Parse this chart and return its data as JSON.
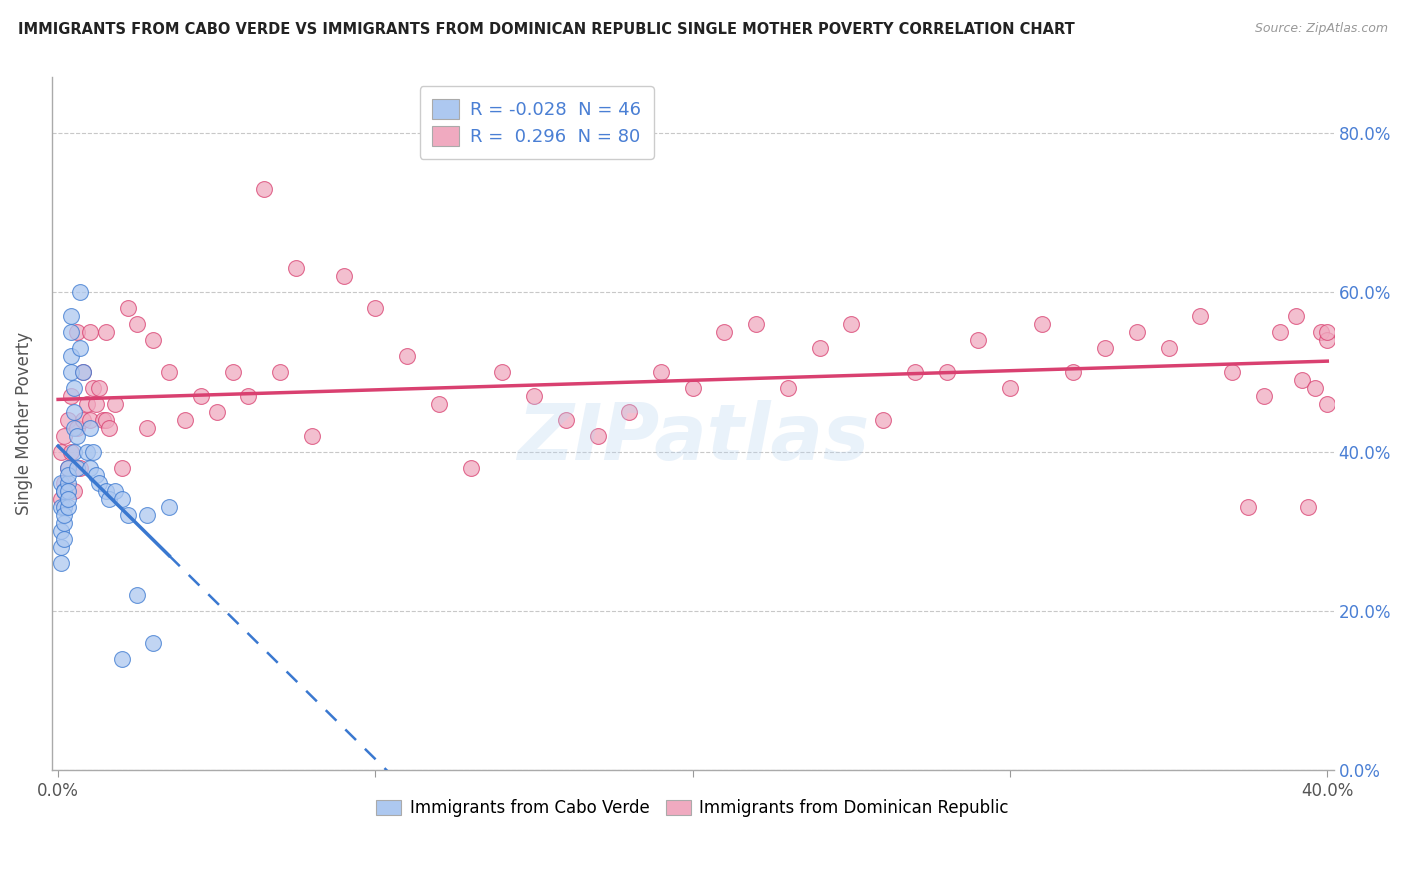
{
  "title": "IMMIGRANTS FROM CABO VERDE VS IMMIGRANTS FROM DOMINICAN REPUBLIC SINGLE MOTHER POVERTY CORRELATION CHART",
  "source": "Source: ZipAtlas.com",
  "ylabel": "Single Mother Poverty",
  "xlabel": "",
  "xlim": [
    -0.002,
    0.402
  ],
  "ylim": [
    0.0,
    0.87
  ],
  "yticks": [
    0.0,
    0.2,
    0.4,
    0.6,
    0.8
  ],
  "xticks": [
    0.0,
    0.1,
    0.2,
    0.3,
    0.4
  ],
  "xtick_labels": [
    "0.0%",
    "",
    "",
    "",
    "40.0%"
  ],
  "legend_R1": "-0.028",
  "legend_N1": "46",
  "legend_R2": "0.296",
  "legend_N2": "80",
  "color_blue": "#adc8f0",
  "color_pink": "#f0aac0",
  "color_blue_line": "#3a78d0",
  "color_pink_line": "#d94070",
  "color_text_blue": "#4a7fd4",
  "watermark": "ZIPatlas",
  "background_color": "#ffffff",
  "grid_color": "#c8c8c8",
  "cabo_verde_x": [
    0.001,
    0.001,
    0.001,
    0.001,
    0.001,
    0.002,
    0.002,
    0.002,
    0.002,
    0.002,
    0.002,
    0.003,
    0.003,
    0.003,
    0.003,
    0.003,
    0.003,
    0.004,
    0.004,
    0.004,
    0.004,
    0.005,
    0.005,
    0.005,
    0.005,
    0.006,
    0.006,
    0.007,
    0.007,
    0.008,
    0.009,
    0.01,
    0.01,
    0.011,
    0.012,
    0.013,
    0.015,
    0.016,
    0.018,
    0.02,
    0.02,
    0.022,
    0.025,
    0.028,
    0.03,
    0.035
  ],
  "cabo_verde_y": [
    0.33,
    0.36,
    0.3,
    0.28,
    0.26,
    0.35,
    0.33,
    0.35,
    0.31,
    0.29,
    0.32,
    0.36,
    0.38,
    0.35,
    0.33,
    0.37,
    0.34,
    0.55,
    0.57,
    0.52,
    0.5,
    0.48,
    0.45,
    0.43,
    0.4,
    0.42,
    0.38,
    0.53,
    0.6,
    0.5,
    0.4,
    0.43,
    0.38,
    0.4,
    0.37,
    0.36,
    0.35,
    0.34,
    0.35,
    0.34,
    0.14,
    0.32,
    0.22,
    0.32,
    0.16,
    0.33
  ],
  "dominican_x": [
    0.001,
    0.001,
    0.002,
    0.002,
    0.003,
    0.003,
    0.004,
    0.004,
    0.005,
    0.006,
    0.006,
    0.007,
    0.008,
    0.008,
    0.009,
    0.01,
    0.01,
    0.011,
    0.012,
    0.013,
    0.014,
    0.015,
    0.015,
    0.016,
    0.018,
    0.02,
    0.022,
    0.025,
    0.028,
    0.03,
    0.035,
    0.04,
    0.045,
    0.05,
    0.055,
    0.06,
    0.065,
    0.07,
    0.075,
    0.08,
    0.09,
    0.1,
    0.11,
    0.12,
    0.13,
    0.14,
    0.15,
    0.16,
    0.17,
    0.18,
    0.19,
    0.2,
    0.21,
    0.22,
    0.23,
    0.24,
    0.25,
    0.26,
    0.27,
    0.28,
    0.29,
    0.3,
    0.31,
    0.32,
    0.33,
    0.34,
    0.35,
    0.36,
    0.37,
    0.375,
    0.38,
    0.385,
    0.39,
    0.392,
    0.394,
    0.396,
    0.398,
    0.4,
    0.4,
    0.4
  ],
  "dominican_y": [
    0.34,
    0.4,
    0.36,
    0.42,
    0.38,
    0.44,
    0.4,
    0.47,
    0.35,
    0.43,
    0.55,
    0.38,
    0.5,
    0.44,
    0.46,
    0.44,
    0.55,
    0.48,
    0.46,
    0.48,
    0.44,
    0.44,
    0.55,
    0.43,
    0.46,
    0.38,
    0.58,
    0.56,
    0.43,
    0.54,
    0.5,
    0.44,
    0.47,
    0.45,
    0.5,
    0.47,
    0.73,
    0.5,
    0.63,
    0.42,
    0.62,
    0.58,
    0.52,
    0.46,
    0.38,
    0.5,
    0.47,
    0.44,
    0.42,
    0.45,
    0.5,
    0.48,
    0.55,
    0.56,
    0.48,
    0.53,
    0.56,
    0.44,
    0.5,
    0.5,
    0.54,
    0.48,
    0.56,
    0.5,
    0.53,
    0.55,
    0.53,
    0.57,
    0.5,
    0.33,
    0.47,
    0.55,
    0.57,
    0.49,
    0.33,
    0.48,
    0.55,
    0.54,
    0.55,
    0.46
  ]
}
